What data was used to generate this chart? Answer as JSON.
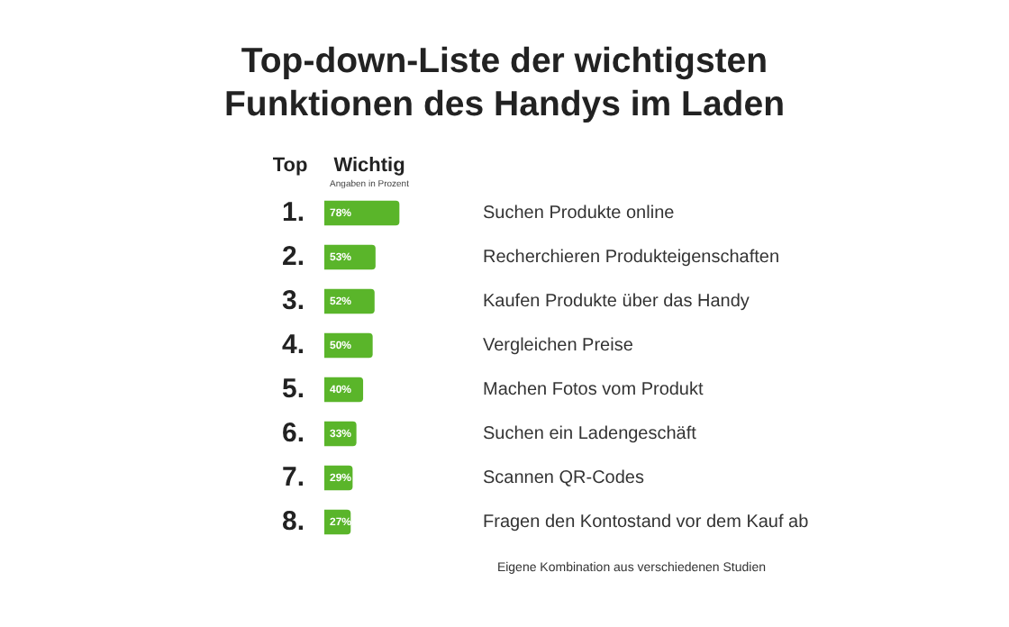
{
  "chart_data": {
    "type": "bar",
    "orientation": "horizontal",
    "title": "Top-down-Liste der wichtigsten Funktionen des Handys im Laden",
    "categories": [
      "Suchen Produkte online",
      "Recherchieren Produkteigenschaften",
      "Kaufen Produkte über das Handy",
      "Vergleichen Preise",
      "Machen Fotos vom Produkt",
      "Suchen ein Ladengeschäft",
      "Scannen QR-Codes",
      "Fragen den Kontostand vor dem Kauf ab"
    ],
    "values": [
      78,
      53,
      52,
      50,
      40,
      33,
      29,
      27
    ],
    "value_labels": [
      "78%",
      "53%",
      "52%",
      "50%",
      "40%",
      "33%",
      "29%",
      "27%"
    ],
    "color": "#5ab52a",
    "annotations": [
      "Top",
      "Wichtig",
      "Angaben in Prozent",
      "1.",
      "2.",
      "3.",
      "4.",
      "5.",
      "6.",
      "7.",
      "8.",
      "Eigene Kombination aus verschiedenen Studien"
    ]
  }
}
